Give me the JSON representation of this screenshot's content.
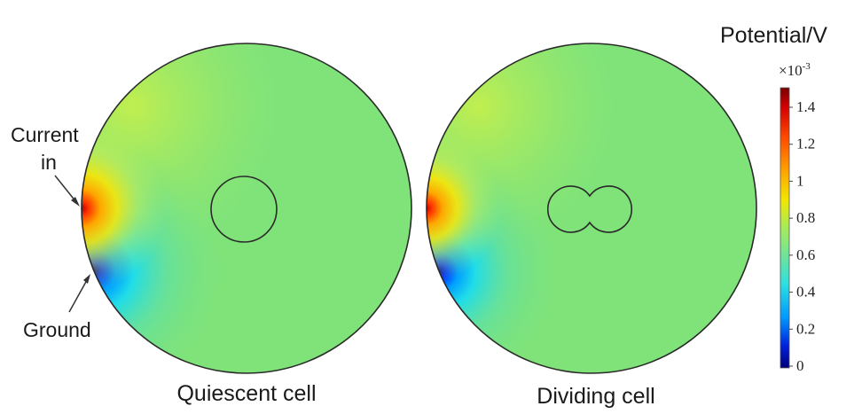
{
  "panels": [
    {
      "caption": "Quiescent cell"
    },
    {
      "caption": "Dividing cell"
    }
  ],
  "annotations": {
    "current_line1": "Current",
    "current_line2": "in",
    "ground": "Ground"
  },
  "colorbar": {
    "title": "Potential/V",
    "multiplier": "×10",
    "exponent": "-3",
    "ticks": [
      "1.4",
      "1.2",
      "1",
      "0.8",
      "0.6",
      "0.4",
      "0.2",
      "0"
    ],
    "colors": [
      "#7a0000",
      "#e60000",
      "#ff7a00",
      "#f2e600",
      "#7fe57f",
      "#2ee0e0",
      "#0066ff",
      "#00007a"
    ]
  },
  "colors": {
    "background_field": "#7fe37a",
    "outline": "#2a2a2a"
  }
}
